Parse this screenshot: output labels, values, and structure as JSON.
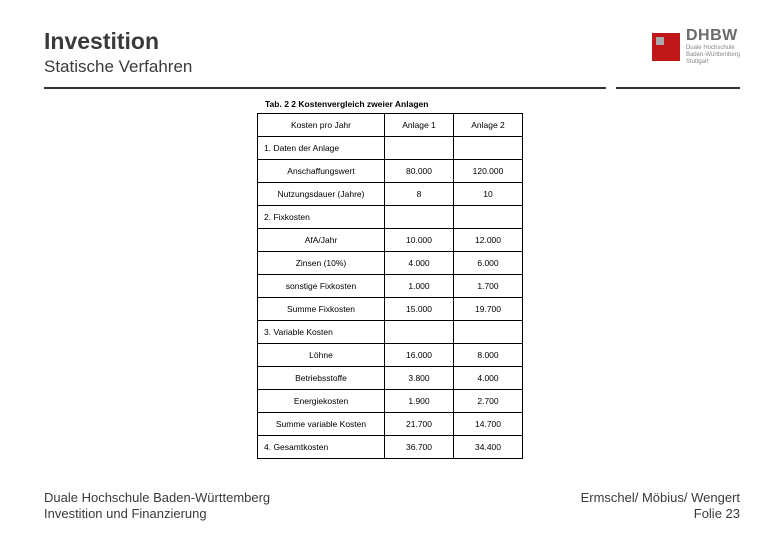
{
  "header": {
    "title": "Investition",
    "subtitle": "Statische Verfahren",
    "logo_main": "DHBW",
    "logo_sub1": "Duale Hochschule",
    "logo_sub2": "Baden-Württemberg",
    "logo_sub3": "Stuttgart"
  },
  "table": {
    "caption": "Tab. 2 2 Kostenvergleich zweier Anlagen",
    "col_label": "Kosten pro Jahr",
    "col1": "Anlage 1",
    "col2": "Anlage 2",
    "s1_header": "1. Daten der Anlage",
    "s1_r1_label": "Anschaffungswert",
    "s1_r1_v1": "80.000",
    "s1_r1_v2": "120.000",
    "s1_r2_label": "Nutzungsdauer (Jahre)",
    "s1_r2_v1": "8",
    "s1_r2_v2": "10",
    "s2_header": "2. Fixkosten",
    "s2_r1_label": "AfA/Jahr",
    "s2_r1_v1": "10.000",
    "s2_r1_v2": "12.000",
    "s2_r2_label": "Zinsen (10%)",
    "s2_r2_v1": "4.000",
    "s2_r2_v2": "6.000",
    "s2_r3_label": "sonstige Fixkosten",
    "s2_r3_v1": "1.000",
    "s2_r3_v2": "1.700",
    "s2_r4_label": "Summe Fixkosten",
    "s2_r4_v1": "15.000",
    "s2_r4_v2": "19.700",
    "s3_header": "3. Variable Kosten",
    "s3_r1_label": "Löhne",
    "s3_r1_v1": "16.000",
    "s3_r1_v2": "8.000",
    "s3_r2_label": "Betriebsstoffe",
    "s3_r2_v1": "3.800",
    "s3_r2_v2": "4.000",
    "s3_r3_label": "Energiekosten",
    "s3_r3_v1": "1.900",
    "s3_r3_v2": "2.700",
    "s3_r4_label": "Summe variable Kosten",
    "s3_r4_v1": "21.700",
    "s3_r4_v2": "14.700",
    "s4_label": "4. Gesamtkosten",
    "s4_v1": "36.700",
    "s4_v2": "34.400"
  },
  "footer": {
    "left_line1": "Duale Hochschule Baden-Württemberg",
    "left_line2": "Investition und Finanzierung",
    "right_line1": "Ermschel/ Möbius/ Wengert",
    "right_line2": "Folie 23"
  },
  "colors": {
    "accent_red": "#c01818",
    "text_dark": "#3a3a3a",
    "rule": "#333333"
  }
}
